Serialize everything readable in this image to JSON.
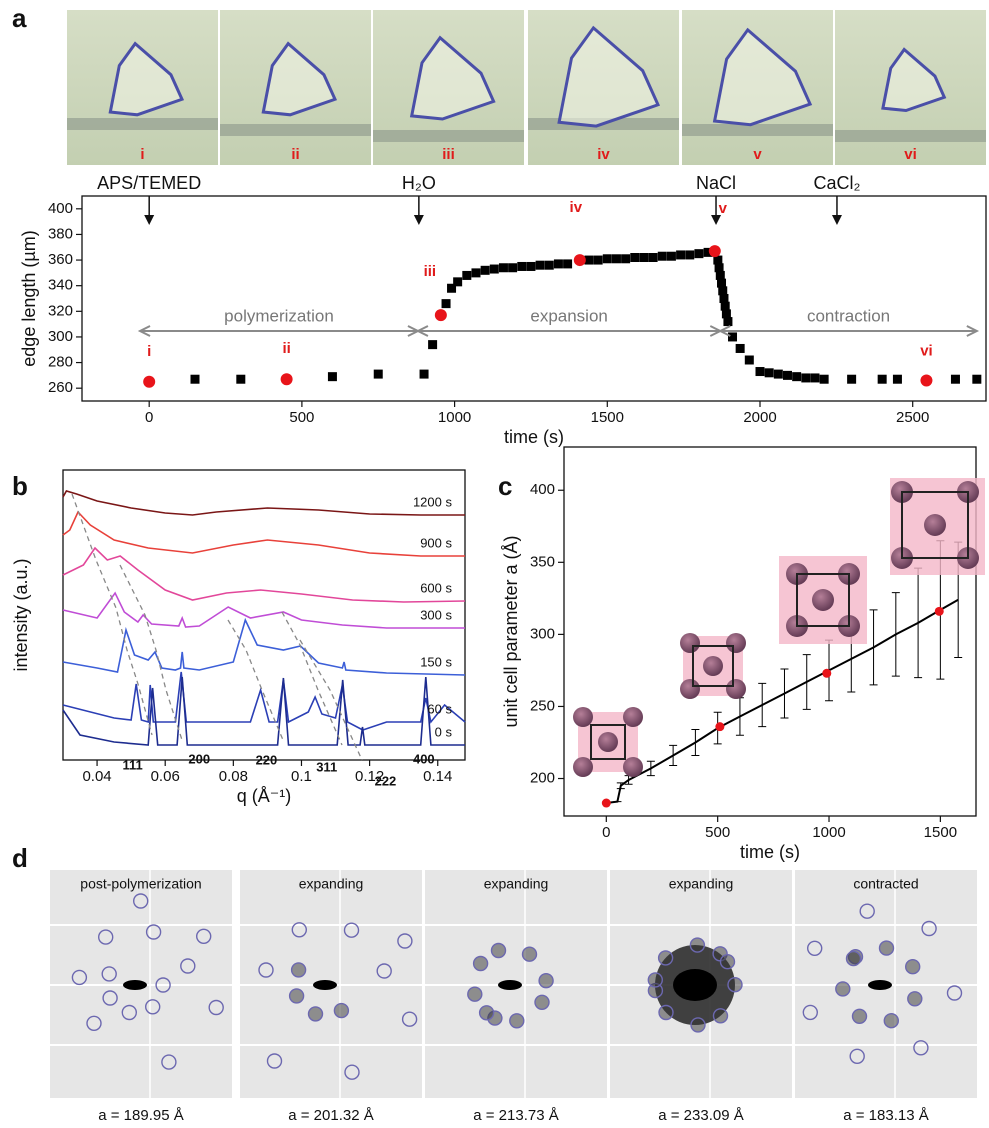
{
  "panel_labels": [
    "a",
    "b",
    "c",
    "d"
  ],
  "photos": {
    "labels": [
      "i",
      "ii",
      "iii",
      "iv",
      "v",
      "vi"
    ]
  },
  "diffraction": [
    {
      "title": "post-polymerization",
      "caption": "a = 189.95 Å"
    },
    {
      "title": "expanding",
      "caption": "a = 201.32 Å"
    },
    {
      "title": "expanding",
      "caption": "a = 213.73 Å"
    },
    {
      "title": "expanding",
      "caption": "a = 233.09 Å"
    },
    {
      "title": "contracted",
      "caption": "a = 183.13 Å"
    }
  ],
  "chart_data": [
    {
      "type": "scatter",
      "x_label": "time (s)",
      "y_label": "edge length (µm)",
      "xlim": [
        -220,
        2740
      ],
      "ylim": [
        250,
        410
      ],
      "xticks": [
        0,
        500,
        1000,
        1500,
        2000,
        2500
      ],
      "yticks": [
        260,
        280,
        300,
        320,
        340,
        360,
        380,
        400
      ],
      "events": [
        {
          "label": "APS/TEMED",
          "x": 0
        },
        {
          "label": "H₂O",
          "x": 883
        },
        {
          "label": "NaCl",
          "x": 1856
        },
        {
          "label": "CaCl₂",
          "x": 2252
        }
      ],
      "phases": [
        {
          "label": "polymerization",
          "from": -30,
          "to": 880
        },
        {
          "label": "expansion",
          "from": 880,
          "to": 1870
        },
        {
          "label": "contraction",
          "from": 1870,
          "to": 2710
        }
      ],
      "series": [
        {
          "marker": "square",
          "color": "#000000",
          "x": [
            150,
            300,
            600,
            750,
            900,
            928,
            972,
            990,
            1010,
            1040,
            1070,
            1100,
            1130,
            1160,
            1190,
            1220,
            1250,
            1280,
            1310,
            1340,
            1370,
            1440,
            1470,
            1500,
            1530,
            1560,
            1590,
            1620,
            1650,
            1680,
            1710,
            1740,
            1770,
            1800,
            1830,
            1862,
            1866,
            1870,
            1874,
            1878,
            1882,
            1886,
            1890,
            1895,
            1910,
            1935,
            1965,
            2000,
            2030,
            2060,
            2090,
            2120,
            2150,
            2180,
            2210,
            2300,
            2400,
            2450,
            2640,
            2710
          ],
          "values": [
            267,
            267,
            269,
            271,
            271,
            294,
            326,
            338,
            343,
            348,
            350,
            352,
            353,
            354,
            354,
            355,
            355,
            356,
            356,
            357,
            357,
            360,
            360,
            361,
            361,
            361,
            362,
            362,
            362,
            363,
            363,
            364,
            364,
            365,
            366,
            360,
            354,
            348,
            342,
            336,
            330,
            324,
            318,
            312,
            300,
            291,
            282,
            273,
            272,
            271,
            270,
            269,
            268,
            268,
            267,
            267,
            267,
            267,
            267,
            267
          ]
        },
        {
          "marker": "circle",
          "color": "#e8141a",
          "x": [
            0,
            450,
            955,
            1410,
            1852,
            2545
          ],
          "values": [
            265,
            267,
            317,
            360,
            367,
            266
          ],
          "point_labels": [
            "i",
            "ii",
            "iii",
            "iv",
            "v",
            "vi"
          ]
        }
      ]
    },
    {
      "type": "line",
      "x_label": "q (Å⁻¹)",
      "y_label": "intensity (a.u.)",
      "xlim": [
        0.03,
        0.148
      ],
      "ylim": [
        0,
        29
      ],
      "xticks": [
        0.04,
        0.06,
        0.08,
        0.1,
        0.12,
        0.14
      ],
      "peak_labels": [
        {
          "label": "111",
          "x": 0.0563
        },
        {
          "label": "200",
          "x": 0.065
        },
        {
          "label": "220",
          "x": 0.0947
        },
        {
          "label": "311",
          "x": 0.1121
        },
        {
          "label": "222",
          "x": 0.1179
        },
        {
          "label": "400",
          "x": 0.1365
        }
      ],
      "series": [
        {
          "name": "1200 s",
          "color": "#7a1616",
          "x": [
            0.03,
            0.031,
            0.034,
            0.04,
            0.05,
            0.06,
            0.068,
            0.075,
            0.09,
            0.105,
            0.12,
            0.135,
            0.148
          ],
          "values": [
            26.3,
            26.9,
            26.6,
            25.9,
            25.2,
            24.7,
            24.5,
            24.8,
            25.2,
            25.0,
            24.6,
            24.5,
            24.5
          ]
        },
        {
          "name": "900 s",
          "color": "#e8413a",
          "x": [
            0.03,
            0.032,
            0.0344,
            0.038,
            0.045,
            0.055,
            0.068,
            0.08,
            0.09,
            0.105,
            0.12,
            0.135,
            0.148
          ],
          "values": [
            22.5,
            23.0,
            24.8,
            23.5,
            22.0,
            21.2,
            20.7,
            21.5,
            22.0,
            21.5,
            20.7,
            20.4,
            20.4
          ]
        },
        {
          "name": "600 s",
          "color": "#e2479a",
          "x": [
            0.03,
            0.036,
            0.0394,
            0.043,
            0.0468,
            0.052,
            0.06,
            0.068,
            0.078,
            0.088,
            0.1,
            0.115,
            0.13,
            0.148
          ],
          "values": [
            18.5,
            19.5,
            21.2,
            20.0,
            20.4,
            19.0,
            17.0,
            16.0,
            16.7,
            17.0,
            16.6,
            16.0,
            15.8,
            15.9
          ]
        },
        {
          "name": "300 s",
          "color": "#c04dd6",
          "x": [
            0.03,
            0.04,
            0.0453,
            0.048,
            0.052,
            0.0535,
            0.056,
            0.064,
            0.065,
            0.066,
            0.07,
            0.0785,
            0.085,
            0.0947,
            0.1,
            0.112,
            0.125,
            0.148
          ],
          "values": [
            15.0,
            14.2,
            16.7,
            14.8,
            13.8,
            14.5,
            13.6,
            13.4,
            14.2,
            13.3,
            13.4,
            15.3,
            14.2,
            14.8,
            14.0,
            13.5,
            13.2,
            13.2
          ]
        },
        {
          "name": "150 s",
          "color": "#3c5fd8",
          "x": [
            0.03,
            0.04,
            0.046,
            0.0485,
            0.051,
            0.055,
            0.057,
            0.059,
            0.063,
            0.0645,
            0.065,
            0.0655,
            0.07,
            0.08,
            0.0835,
            0.087,
            0.0947,
            0.0997,
            0.105,
            0.112,
            0.1125,
            0.113,
            0.125,
            0.148
          ],
          "values": [
            9.8,
            9.2,
            8.8,
            13.0,
            10.5,
            10.0,
            10.8,
            9.2,
            9.0,
            9.2,
            10.8,
            9.2,
            9.0,
            9.8,
            14.0,
            11.5,
            11.0,
            11.4,
            9.7,
            9.2,
            9.8,
            9.0,
            8.7,
            8.5
          ]
        },
        {
          "name": "60 s",
          "color": "#2b3fb5",
          "x": [
            0.03,
            0.045,
            0.05,
            0.0515,
            0.053,
            0.055,
            0.0556,
            0.0565,
            0.063,
            0.0647,
            0.0662,
            0.085,
            0.088,
            0.0905,
            0.093,
            0.0947,
            0.0962,
            0.102,
            0.104,
            0.106,
            0.11,
            0.112,
            0.1135,
            0.118,
            0.125,
            0.135,
            0.1365,
            0.138,
            0.142,
            0.148
          ],
          "values": [
            5.5,
            4.2,
            4.0,
            7.6,
            4.0,
            3.8,
            7.5,
            3.8,
            3.8,
            8.8,
            3.8,
            3.8,
            7.0,
            3.8,
            3.8,
            8.0,
            3.8,
            4.8,
            6.3,
            4.6,
            4.2,
            7.5,
            3.8,
            3.0,
            3.8,
            3.8,
            6.2,
            3.8,
            5.5,
            3.8
          ]
        },
        {
          "name": "0 s",
          "color": "#1d2c8f",
          "x": [
            0.03,
            0.035,
            0.045,
            0.055,
            0.0563,
            0.0578,
            0.0635,
            0.065,
            0.0665,
            0.093,
            0.0947,
            0.0962,
            0.1105,
            0.1121,
            0.1137,
            0.1172,
            0.1179,
            0.1186,
            0.135,
            0.1365,
            0.138,
            0.148
          ],
          "values": [
            5.0,
            2.5,
            1.8,
            1.5,
            7.2,
            1.5,
            1.5,
            8.3,
            1.5,
            1.5,
            8.2,
            1.5,
            1.5,
            8.0,
            1.5,
            1.5,
            3.3,
            1.5,
            1.5,
            8.3,
            1.5,
            1.5
          ]
        }
      ]
    },
    {
      "type": "line",
      "x_label": "time (s)",
      "y_label": "unit cell parameter a (Å)",
      "xlim": [
        -190,
        1660
      ],
      "ylim": [
        174,
        430
      ],
      "xticks": [
        0,
        500,
        1000,
        1500
      ],
      "yticks": [
        200,
        250,
        300,
        350,
        400
      ],
      "series": [
        {
          "color": "#000000",
          "x": [
            0,
            50,
            65,
            100,
            200,
            300,
            400,
            500,
            600,
            700,
            800,
            900,
            1000,
            1100,
            1200,
            1300,
            1400,
            1500,
            1580
          ],
          "values": [
            183,
            184,
            195,
            199,
            207,
            216,
            225,
            235,
            243,
            251,
            259,
            267,
            275,
            283,
            291,
            300,
            308,
            317,
            324
          ],
          "errors": [
            0,
            0,
            2,
            3,
            5,
            7,
            9,
            11,
            13,
            15,
            17,
            19,
            21,
            23,
            26,
            29,
            38,
            48,
            40
          ]
        },
        {
          "marker": "circle",
          "color": "#e8141a",
          "x": [
            0,
            510,
            990,
            1495
          ],
          "values": [
            183,
            236,
            273,
            316
          ]
        }
      ]
    }
  ]
}
